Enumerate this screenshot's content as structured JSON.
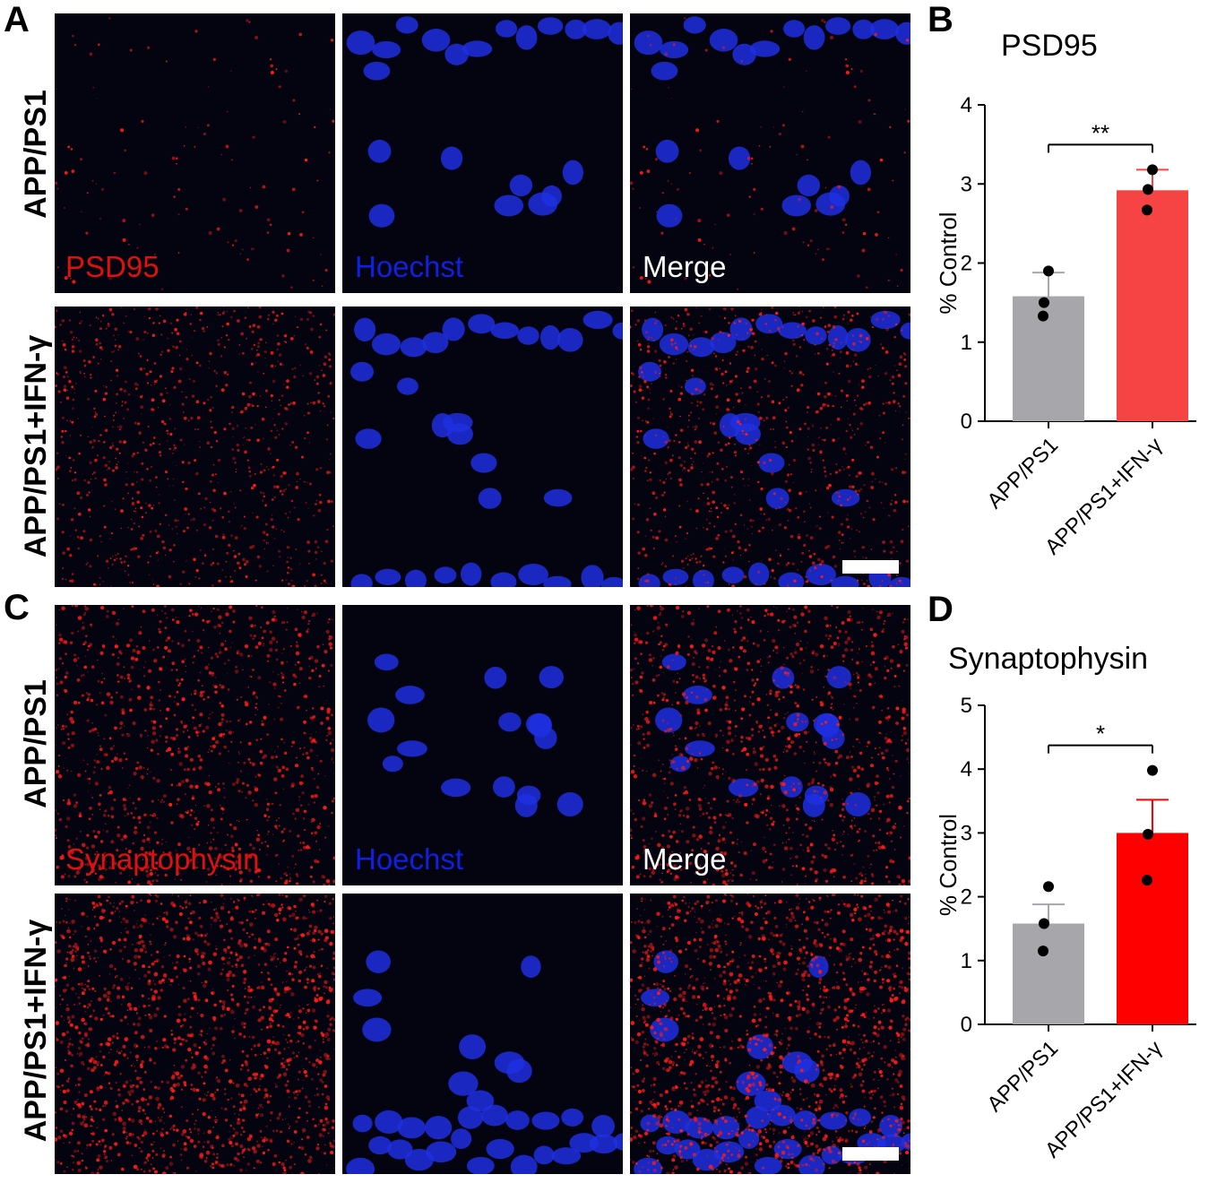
{
  "panels": {
    "A": {
      "letter": "A",
      "rows": [
        {
          "label": "APP/PS1"
        },
        {
          "label": "APP/PS1+IFN-γ"
        }
      ],
      "channel_labels": [
        {
          "text": "PSD95",
          "color": "#e01010"
        },
        {
          "text": "Hoechst",
          "color": "#1020e0"
        },
        {
          "text": "Merge",
          "color": "#ffffff"
        }
      ]
    },
    "C": {
      "letter": "C",
      "rows": [
        {
          "label": "APP/PS1"
        },
        {
          "label": "APP/PS1+IFN-γ"
        }
      ],
      "channel_labels": [
        {
          "text": "Synaptophysin",
          "color": "#e01010"
        },
        {
          "text": "Hoechst",
          "color": "#1020e0"
        },
        {
          "text": "Merge",
          "color": "#ffffff"
        }
      ]
    },
    "B": {
      "letter": "B"
    },
    "D": {
      "letter": "D"
    }
  },
  "colors": {
    "red_signal": "#ff1a1a",
    "blue_nuclei": "#1f2fe0",
    "background": "#040410",
    "bar_gray": "#a7a7ab",
    "bar_red_B": "#f64444",
    "bar_red_D": "#ff0000"
  },
  "chart_data": [
    {
      "type": "bar",
      "title": "PSD95",
      "ylabel": "% Control",
      "categories": [
        "APP/PS1",
        "APP/PS1+IFN-γ"
      ],
      "values": [
        1.58,
        2.92
      ],
      "errors": [
        0.3,
        0.26
      ],
      "points": [
        [
          1.9,
          1.5,
          1.33
        ],
        [
          3.18,
          2.93,
          2.67
        ]
      ],
      "bar_colors": [
        "#a7a7ab",
        "#f64444"
      ],
      "ylim": [
        0,
        4
      ],
      "yticks": [
        0,
        1,
        2,
        3,
        4
      ],
      "significance": "**"
    },
    {
      "type": "bar",
      "title": "Synaptophysin",
      "ylabel": "% Control",
      "categories": [
        "APP/PS1",
        "APP/PS1+IFN-γ"
      ],
      "values": [
        1.58,
        3.0
      ],
      "errors": [
        0.3,
        0.52
      ],
      "points": [
        [
          2.16,
          1.58,
          1.15
        ],
        [
          3.98,
          2.98,
          2.26
        ]
      ],
      "bar_colors": [
        "#a7a7ab",
        "#ff0000"
      ],
      "ylim": [
        0,
        5
      ],
      "yticks": [
        0,
        1,
        2,
        3,
        4,
        5
      ],
      "significance": "*"
    }
  ]
}
